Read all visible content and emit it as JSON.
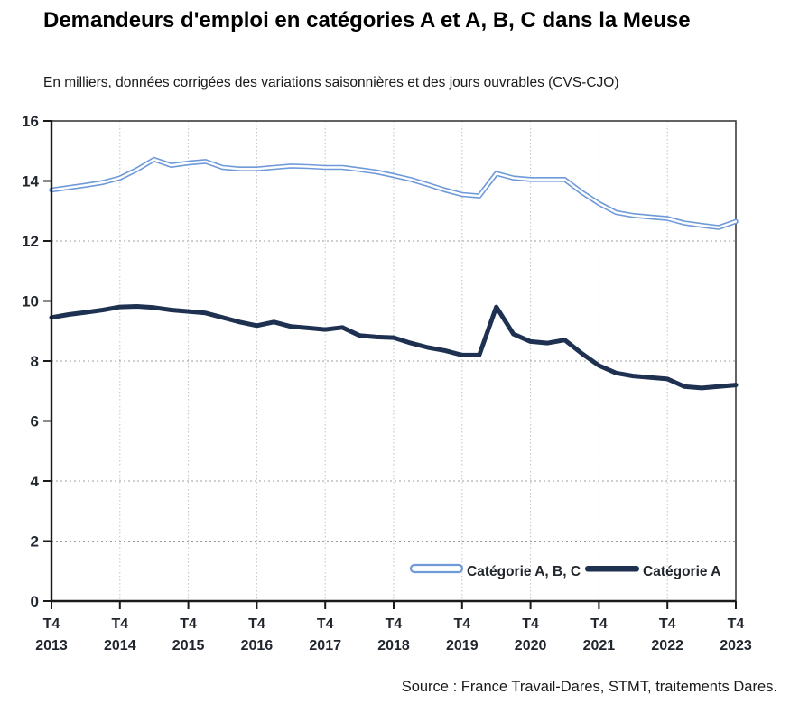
{
  "header": {
    "title": "Demandeurs d'emploi en catégories A et A, B, C dans la Meuse",
    "subtitle": "En milliers, données corrigées des variations saisonnières et des jours ouvrables (CVS-CJO)"
  },
  "footer": {
    "source": "Source : France Travail-Dares, STMT, traitements Dares."
  },
  "colors": {
    "accent_blue": "#6f9ad8",
    "accent_navy": "#1e3150",
    "grid": "#9c9c9c",
    "grid_vertical": "#c2c2c2",
    "axis": "#1a1a1a",
    "tick_label": "#21262e",
    "plot_border": "#3c3c3c"
  },
  "chart_data": {
    "type": "line",
    "title": "Demandeurs d'emploi en catégories A et A, B, C dans la Meuse",
    "ylabel": "En milliers (CVS-CJO)",
    "xlabel": "",
    "ylim": [
      0,
      16
    ],
    "ytick_step": 2,
    "grid": true,
    "legend_position": "inside-bottom",
    "x_unit": "trimestre",
    "x_range_start": "T4 2013",
    "x_range_end": "T4 2023",
    "x_ticks_every_n_points": 4,
    "x_tick_labels": [
      {
        "line1": "T4",
        "line2": "2013"
      },
      {
        "line1": "T4",
        "line2": "2014"
      },
      {
        "line1": "T4",
        "line2": "2015"
      },
      {
        "line1": "T4",
        "line2": "2016"
      },
      {
        "line1": "T4",
        "line2": "2017"
      },
      {
        "line1": "T4",
        "line2": "2018"
      },
      {
        "line1": "T4",
        "line2": "2019"
      },
      {
        "line1": "T4",
        "line2": "2020"
      },
      {
        "line1": "T4",
        "line2": "2021"
      },
      {
        "line1": "T4",
        "line2": "2022"
      },
      {
        "line1": "T4",
        "line2": "2023"
      }
    ],
    "series": [
      {
        "name": "Catégorie A, B, C",
        "color": "#6f9ad8",
        "style": "double-line",
        "values": [
          13.7,
          13.78,
          13.86,
          13.95,
          14.1,
          14.38,
          14.72,
          14.52,
          14.6,
          14.65,
          14.45,
          14.4,
          14.4,
          14.45,
          14.5,
          14.48,
          14.45,
          14.45,
          14.38,
          14.3,
          14.18,
          14.05,
          13.88,
          13.7,
          13.55,
          13.5,
          14.25,
          14.1,
          14.05,
          14.05,
          14.05,
          13.62,
          13.25,
          12.95,
          12.85,
          12.8,
          12.75,
          12.6,
          12.52,
          12.45,
          12.65
        ]
      },
      {
        "name": "Catégorie A",
        "color": "#1e3150",
        "style": "solid",
        "values": [
          9.45,
          9.55,
          9.62,
          9.7,
          9.8,
          9.82,
          9.78,
          9.7,
          9.65,
          9.6,
          9.45,
          9.3,
          9.18,
          9.3,
          9.15,
          9.1,
          9.05,
          9.12,
          8.85,
          8.8,
          8.78,
          8.6,
          8.45,
          8.35,
          8.2,
          8.2,
          9.8,
          8.9,
          8.65,
          8.6,
          8.7,
          8.25,
          7.85,
          7.6,
          7.5,
          7.45,
          7.4,
          7.15,
          7.1,
          7.15,
          7.2
        ]
      }
    ]
  }
}
